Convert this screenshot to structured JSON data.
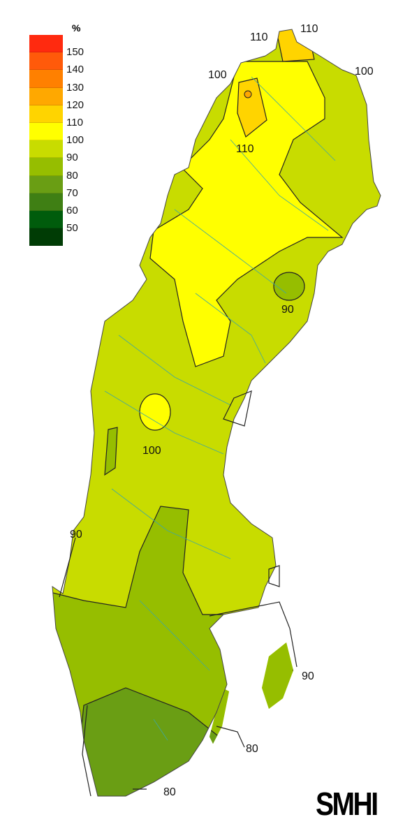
{
  "legend": {
    "unit": "%",
    "colors": [
      "#ff2a0f",
      "#ff5a0a",
      "#ff8000",
      "#ffa800",
      "#ffd400",
      "#ffff00",
      "#c8dc00",
      "#96be00",
      "#6a9e14",
      "#3f7f14",
      "#005c0c",
      "#003c05"
    ],
    "labels": [
      "150",
      "140",
      "130",
      "120",
      "110",
      "100",
      "90",
      "80",
      "70",
      "60",
      "50"
    ]
  },
  "map": {
    "isoline_labels": [
      "110",
      "110",
      "100",
      "100",
      "110",
      "90",
      "100",
      "90",
      "90",
      "80",
      "80"
    ],
    "zone_colors": {
      "above_110": "#ffd400",
      "100_110": "#ffff00",
      "90_100": "#c8dc00",
      "80_90": "#96be00",
      "70_80": "#6a9e14"
    },
    "river_color": "#3fa7a0"
  },
  "logo": "SMHI"
}
